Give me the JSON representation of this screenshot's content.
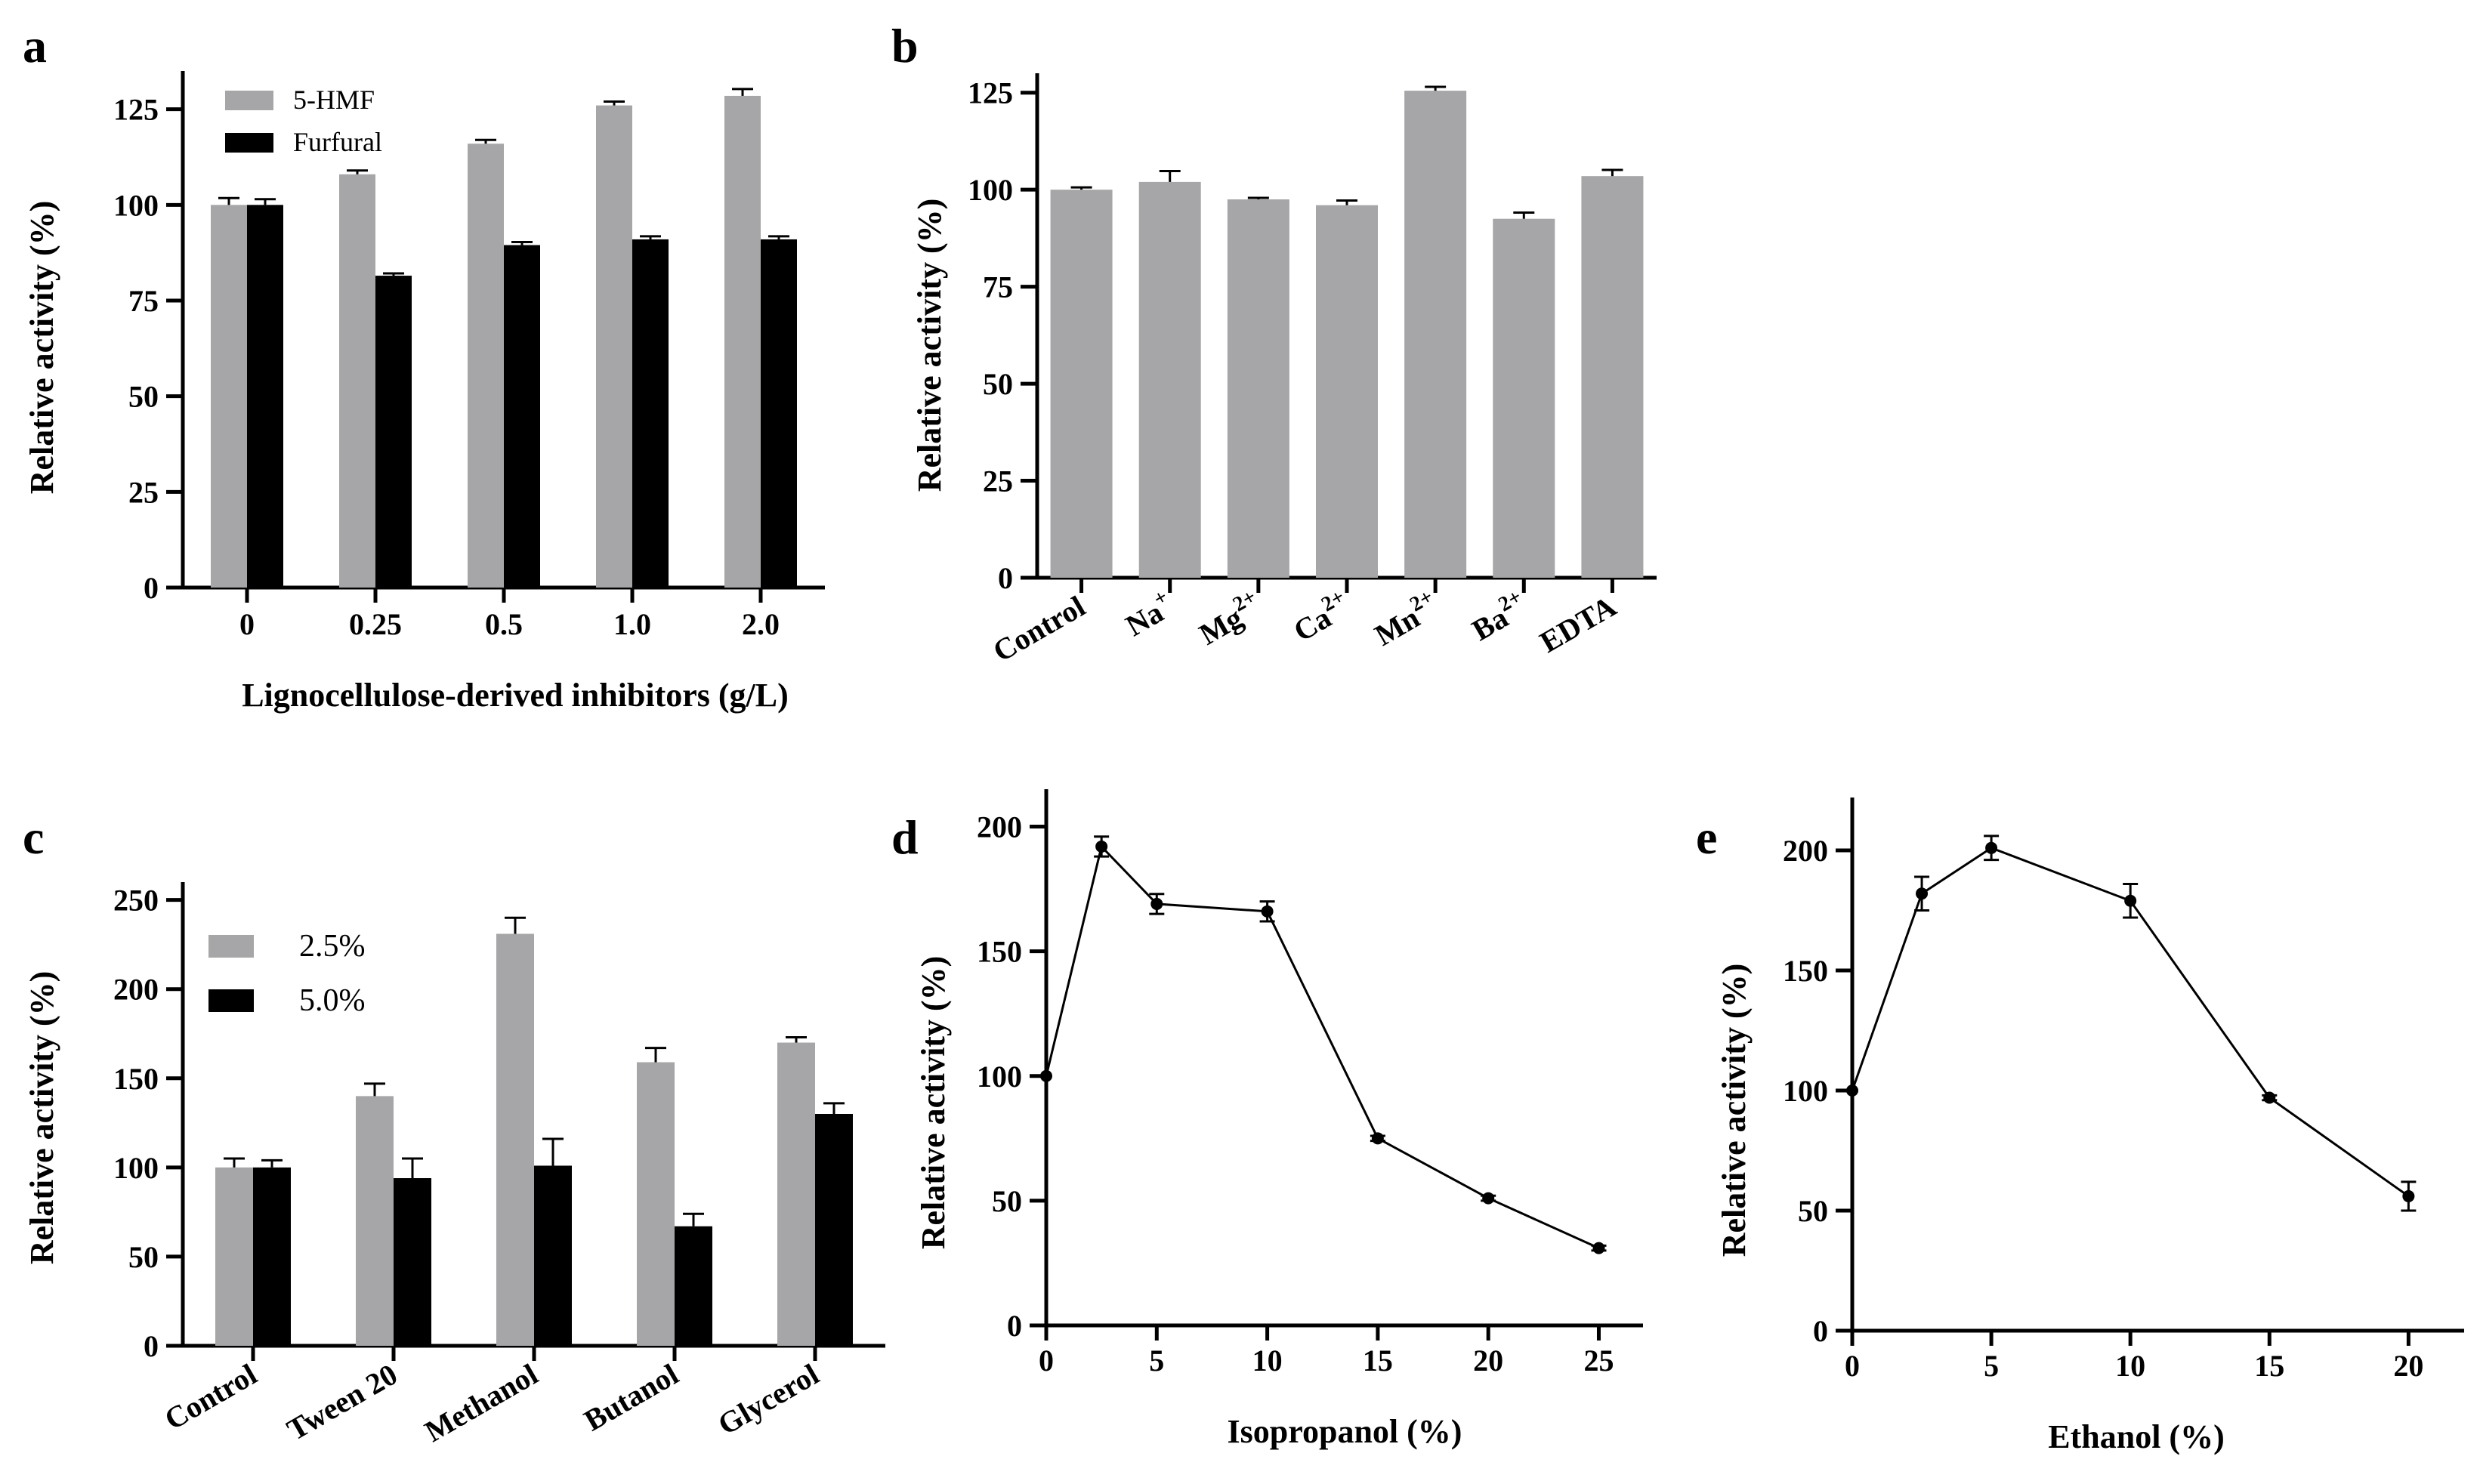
{
  "chart_data": [
    {
      "panel": "a",
      "type": "bar",
      "title": "",
      "xlabel": "Lignocellulose-derived inhibitors (g/L)",
      "ylabel": "Relative activity (%)",
      "ylim": [
        0,
        135
      ],
      "yticks": [
        "0",
        "25",
        "50",
        "75",
        "100",
        "125"
      ],
      "categories": [
        "0",
        "0.25",
        "0.5",
        "1.0",
        "2.0"
      ],
      "series": [
        {
          "name": "5-HMF",
          "color": "#a6a6a8",
          "values": [
            100,
            108,
            116,
            126,
            128.5
          ],
          "errors": [
            1.8,
            1.0,
            1.0,
            1.0,
            1.8
          ]
        },
        {
          "name": "Furfural",
          "color": "#000000",
          "values": [
            100,
            81.5,
            89.5,
            91,
            91
          ],
          "errors": [
            1.5,
            0.6,
            0.8,
            0.8,
            0.8
          ]
        }
      ],
      "legend_position": "top-left"
    },
    {
      "panel": "b",
      "type": "bar",
      "title": "",
      "xlabel": "",
      "ylabel": "Relative activity (%)",
      "ylim": [
        0,
        130
      ],
      "yticks": [
        "0",
        "25",
        "50",
        "75",
        "100",
        "125"
      ],
      "categories": [
        {
          "base": "Control",
          "sup": ""
        },
        {
          "base": "Na",
          "sup": "+"
        },
        {
          "base": "Mg",
          "sup": "2+"
        },
        {
          "base": "Ca",
          "sup": "2+"
        },
        {
          "base": "Mn",
          "sup": "2+"
        },
        {
          "base": "Ba",
          "sup": "2+"
        },
        {
          "base": "EDTA",
          "sup": ""
        }
      ],
      "series": [
        {
          "name": "activity",
          "color": "#a6a6a8",
          "values": [
            100,
            102,
            97.5,
            96,
            125.5,
            92.5,
            103.5
          ],
          "errors": [
            0.6,
            2.8,
            0.4,
            1.2,
            1.0,
            1.6,
            1.6
          ]
        }
      ]
    },
    {
      "panel": "c",
      "type": "bar",
      "title": "",
      "xlabel": "",
      "ylabel": "Relative activity (%)",
      "ylim": [
        0,
        260
      ],
      "yticks": [
        "0",
        "50",
        "100",
        "150",
        "200",
        "250"
      ],
      "categories": [
        "Control",
        "Tween 20",
        "Methanol",
        "Butanol",
        "Glycerol"
      ],
      "series": [
        {
          "name": "2.5%",
          "color": "#a6a6a8",
          "values": [
            100,
            140,
            231,
            159,
            170
          ],
          "errors": [
            5,
            7,
            9,
            8,
            3
          ]
        },
        {
          "name": "5.0%",
          "color": "#000000",
          "values": [
            100,
            94,
            101,
            67,
            130
          ],
          "errors": [
            4,
            11,
            15,
            7,
            6
          ]
        }
      ],
      "legend_position": "top-left"
    },
    {
      "panel": "d",
      "type": "line",
      "title": "",
      "xlabel": "Isopropanol (%)",
      "ylabel": "Relative activity (%)",
      "xlim": [
        0,
        27
      ],
      "ylim": [
        0,
        215
      ],
      "xticks": [
        "0",
        "5",
        "10",
        "15",
        "20",
        "25"
      ],
      "yticks": [
        "0",
        "50",
        "100",
        "150",
        "200"
      ],
      "x": [
        0,
        2.5,
        5,
        10,
        15,
        20,
        25
      ],
      "y": [
        100,
        192,
        169,
        166,
        75,
        51,
        31
      ],
      "errors": [
        0,
        4,
        4,
        4,
        1,
        1,
        1
      ]
    },
    {
      "panel": "e",
      "type": "line",
      "title": "",
      "xlabel": "Ethanol  (%)",
      "ylabel": "Relative activity (%)",
      "xlim": [
        0,
        22
      ],
      "ylim": [
        0,
        222
      ],
      "xticks": [
        "0",
        "5",
        "10",
        "15",
        "20"
      ],
      "yticks": [
        "0",
        "50",
        "100",
        "150",
        "200"
      ],
      "x": [
        0,
        2.5,
        5,
        10,
        15,
        20
      ],
      "y": [
        100,
        182,
        201,
        179,
        97,
        56
      ],
      "errors": [
        0,
        7,
        5,
        7,
        1,
        6
      ]
    }
  ]
}
